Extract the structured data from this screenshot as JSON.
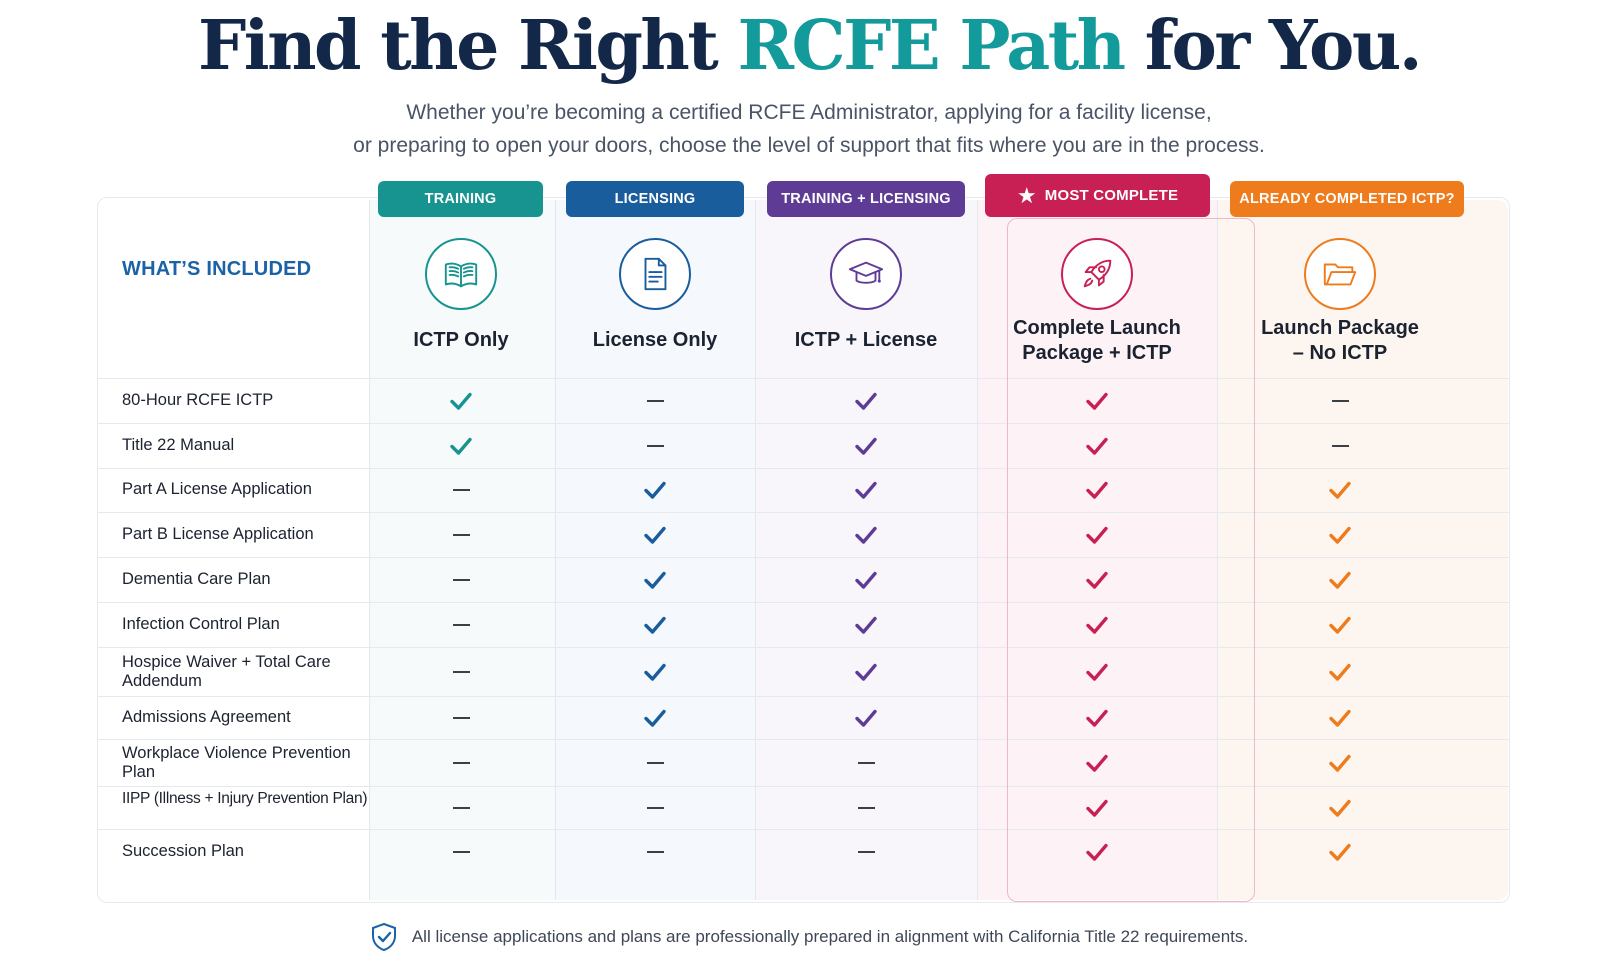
{
  "header": {
    "title_part1": "Find the Right ",
    "title_accent": "RCFE Path",
    "title_part2": " for You.",
    "subtitle_line1": "Whether you’re becoming a certified RCFE Administrator, applying for a facility license,",
    "subtitle_line2": "or preparing to open your doors, choose the level of support that fits where you are in the process."
  },
  "table": {
    "included_label": "WHAT’S INCLUDED",
    "plans": [
      {
        "tag": "TRAINING",
        "name_line1": "ICTP Only",
        "name_line2": "",
        "icon": "book-icon",
        "color": "#17948f"
      },
      {
        "tag": "LICENSING",
        "name_line1": "License Only",
        "name_line2": "",
        "icon": "document-icon",
        "color": "#1a5d9c"
      },
      {
        "tag": "TRAINING + LICENSING",
        "name_line1": "ICTP + License",
        "name_line2": "",
        "icon": "graduation-cap-icon",
        "color": "#5e3c96"
      },
      {
        "tag": "MOST COMPLETE",
        "name_line1": "Complete Launch",
        "name_line2": "Package + ICTP",
        "icon": "rocket-icon",
        "color": "#c82055"
      },
      {
        "tag": "ALREADY COMPLETED ICTP?",
        "name_line1": "Launch Package",
        "name_line2": "– No ICTP",
        "icon": "folder-icon",
        "color": "#ee7b1c"
      }
    ],
    "rows": [
      {
        "label": "80-Hour RCFE ICTP",
        "values": [
          true,
          false,
          true,
          true,
          false
        ]
      },
      {
        "label": "Title 22 Manual",
        "values": [
          true,
          false,
          true,
          true,
          false
        ]
      },
      {
        "label": "Part A License Application",
        "values": [
          false,
          true,
          true,
          true,
          true
        ]
      },
      {
        "label": "Part B License Application",
        "values": [
          false,
          true,
          true,
          true,
          true
        ]
      },
      {
        "label": "Dementia Care Plan",
        "values": [
          false,
          true,
          true,
          true,
          true
        ]
      },
      {
        "label": "Infection Control Plan",
        "values": [
          false,
          true,
          true,
          true,
          true
        ]
      },
      {
        "label": "Hospice Waiver + Total Care Addendum",
        "values": [
          false,
          true,
          true,
          true,
          true
        ]
      },
      {
        "label": "Admissions Agreement",
        "values": [
          false,
          true,
          true,
          true,
          true
        ]
      },
      {
        "label": "Workplace Violence Prevention Plan",
        "values": [
          false,
          false,
          false,
          true,
          true
        ]
      },
      {
        "label": "IIPP (Illness + Injury Prevention Plan)",
        "values": [
          false,
          false,
          false,
          true,
          true
        ]
      },
      {
        "label": "Succession Plan",
        "values": [
          false,
          false,
          false,
          true,
          true
        ]
      }
    ]
  },
  "footer": {
    "icon": "shield-check-icon",
    "text": "All license applications and plans are professionally prepared in alignment with California Title 22 requirements."
  }
}
